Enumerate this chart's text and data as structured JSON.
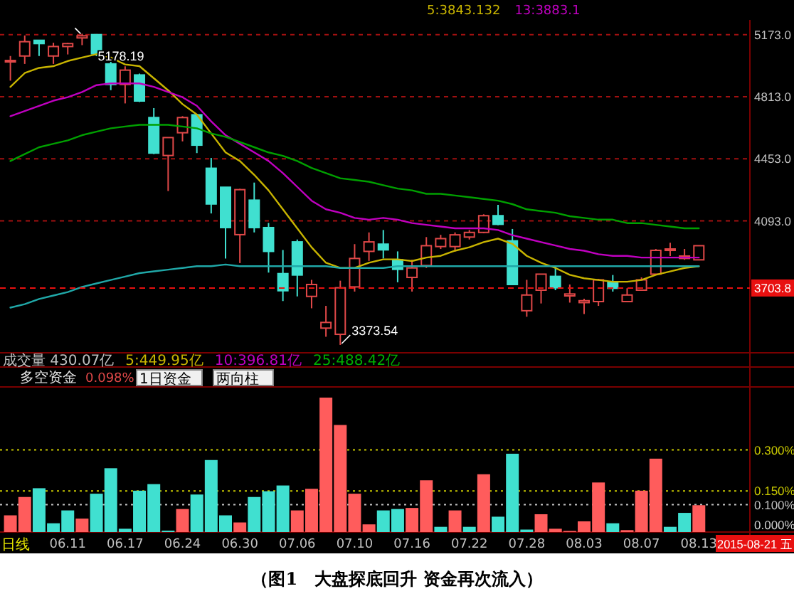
{
  "chart_data": [
    {
      "type": "candlestick",
      "title": "（图1　大盘探底回升 资金再次流入）",
      "categories": [
        null,
        null,
        null,
        null,
        "06.11",
        null,
        null,
        null,
        "06.17",
        null,
        null,
        null,
        "06.24",
        null,
        null,
        null,
        "06.30",
        null,
        null,
        null,
        "07.06",
        null,
        null,
        null,
        "07.10",
        null,
        null,
        null,
        "07.16",
        null,
        null,
        null,
        "07.22",
        null,
        null,
        null,
        "07.28",
        null,
        null,
        null,
        "08.03",
        null,
        null,
        null,
        "08.07",
        null,
        null,
        null,
        "08.13"
      ],
      "ohlc": [
        [
          5015,
          5049,
          4906,
          5023
        ],
        [
          5049,
          5168,
          5003,
          5132
        ],
        [
          5140,
          5140,
          5049,
          5121
        ],
        [
          5049,
          5126,
          5003,
          5104
        ],
        [
          5104,
          5126,
          5058,
          5121
        ],
        [
          5154,
          5178.19,
          5112,
          5166
        ],
        [
          5173,
          5176,
          5048,
          5062
        ],
        [
          5003,
          5030,
          4851,
          4884
        ],
        [
          4884,
          4989,
          4774,
          4967
        ],
        [
          4939,
          4947,
          4782,
          4788
        ],
        [
          4692,
          4747,
          4480,
          4486
        ],
        [
          4472,
          4576,
          4266,
          4576
        ],
        [
          4604,
          4700,
          4554,
          4692
        ],
        [
          4708,
          4714,
          4486,
          4532
        ],
        [
          4398,
          4458,
          4136,
          4191
        ],
        [
          4288,
          4288,
          3875,
          4054
        ],
        [
          4013,
          4279,
          3848,
          4274
        ],
        [
          4213,
          4315,
          4026,
          4054
        ],
        [
          4054,
          4081,
          3793,
          3916
        ],
        [
          3787,
          3924,
          3628,
          3688
        ],
        [
          3971,
          3985,
          3655,
          3779
        ],
        [
          3655,
          3751,
          3586,
          3724
        ],
        [
          3471,
          3600,
          3421,
          3504
        ],
        [
          3435,
          3746,
          3373.54,
          3705
        ],
        [
          3710,
          3958,
          3683,
          3875
        ],
        [
          3916,
          4026,
          3861,
          3971
        ],
        [
          3958,
          4040,
          3875,
          3925
        ],
        [
          3867,
          3916,
          3737,
          3812
        ],
        [
          3765,
          3867,
          3683,
          3820
        ],
        [
          3834,
          3999,
          3820,
          3949
        ],
        [
          3944,
          4012,
          3930,
          3990
        ],
        [
          3944,
          4026,
          3916,
          4012
        ],
        [
          3999,
          4040,
          3985,
          4026
        ],
        [
          4026,
          4131,
          4021,
          4123
        ],
        [
          4123,
          4186,
          4068,
          4073
        ],
        [
          3977,
          4046,
          3724,
          3724
        ],
        [
          3572,
          3751,
          3537,
          3663
        ],
        [
          3691,
          3784,
          3614,
          3784
        ],
        [
          3771,
          3834,
          3691,
          3705
        ],
        [
          3658,
          3724,
          3619,
          3669
        ],
        [
          3619,
          3641,
          3553,
          3630
        ],
        [
          3625,
          3757,
          3600,
          3751
        ],
        [
          3737,
          3779,
          3683,
          3702
        ],
        [
          3625,
          3702,
          3625,
          3663
        ],
        [
          3691,
          3765,
          3691,
          3751
        ],
        [
          3784,
          3930,
          3784,
          3922
        ],
        [
          3925,
          3966,
          3889,
          3930
        ],
        [
          3875,
          3930,
          3867,
          3889
        ],
        [
          3867,
          3949,
          3867,
          3949
        ]
      ],
      "series": [
        {
          "type": "line",
          "name": "5:3843.132",
          "color": "#c8b400",
          "values": [
            4870,
            4950,
            4980,
            4990,
            5020,
            5040,
            5060,
            5040,
            5000,
            4990,
            4920,
            4850,
            4770,
            4710,
            4600,
            4490,
            4440,
            4360,
            4270,
            4160,
            4050,
            3940,
            3850,
            3820,
            3820,
            3850,
            3870,
            3870,
            3860,
            3880,
            3890,
            3920,
            3940,
            3970,
            3990,
            3960,
            3890,
            3850,
            3820,
            3780,
            3760,
            3750,
            3740,
            3740,
            3750,
            3780,
            3800,
            3820,
            3830
          ]
        },
        {
          "type": "line",
          "name": "13:3883.1",
          "color": "#c000c0",
          "values": [
            4700,
            4730,
            4760,
            4790,
            4810,
            4840,
            4880,
            4890,
            4890,
            4890,
            4870,
            4840,
            4810,
            4760,
            4670,
            4590,
            4540,
            4490,
            4440,
            4370,
            4290,
            4210,
            4160,
            4140,
            4110,
            4100,
            4110,
            4100,
            4080,
            4070,
            4060,
            4050,
            4050,
            4050,
            4040,
            4010,
            3990,
            3970,
            3950,
            3930,
            3920,
            3900,
            3890,
            3890,
            3880,
            3880,
            3880,
            3880,
            3880
          ]
        },
        {
          "type": "line",
          "color": "#00a000",
          "values": [
            4440,
            4480,
            4520,
            4540,
            4560,
            4590,
            4610,
            4630,
            4640,
            4650,
            4650,
            4650,
            4640,
            4630,
            4600,
            4580,
            4550,
            4520,
            4490,
            4470,
            4440,
            4400,
            4370,
            4340,
            4330,
            4320,
            4300,
            4280,
            4270,
            4250,
            4250,
            4240,
            4230,
            4220,
            4210,
            4190,
            4160,
            4150,
            4140,
            4120,
            4110,
            4100,
            4100,
            4080,
            4080,
            4070,
            4060,
            4050,
            4050
          ]
        },
        {
          "type": "line",
          "color": "#20a8a8",
          "values": [
            3590,
            3610,
            3640,
            3660,
            3680,
            3710,
            3730,
            3750,
            3770,
            3790,
            3800,
            3810,
            3820,
            3830,
            3830,
            3840,
            3830,
            3830,
            3830,
            3830,
            3830,
            3830,
            3830,
            3820,
            3820,
            3820,
            3820,
            3830,
            3830,
            3830,
            3830,
            3830,
            3830,
            3830,
            3830,
            3830,
            3830,
            3830,
            3830,
            3830,
            3830,
            3830,
            3830,
            3830,
            3830,
            3830,
            3830,
            3830,
            3830
          ]
        }
      ],
      "ylim": [
        3328,
        5250
      ],
      "yticks": [
        {
          "value": 5173,
          "label": "5173.0"
        },
        {
          "value": 4813,
          "label": "4813.0"
        },
        {
          "value": 4453,
          "label": "4453.0"
        },
        {
          "value": 4093,
          "label": "4093.0"
        }
      ],
      "grid": "y",
      "legend": "top",
      "tick_labels": "y",
      "ref_lines": [
        {
          "axis": "y",
          "value": 3703.8,
          "label": "3703.8",
          "color": "#e81010",
          "line_style": "dashed"
        }
      ],
      "annotations": [
        "成交量 430.07亿",
        "5:449.95亿",
        "10:396.81亿",
        "25:488.42亿",
        "5178.19",
        "3373.54"
      ]
    },
    {
      "type": "bar",
      "title": "多空资金",
      "categories": [
        null,
        null,
        null,
        null,
        "06.11",
        null,
        null,
        null,
        "06.17",
        null,
        null,
        null,
        "06.24",
        null,
        null,
        null,
        "06.30",
        null,
        null,
        null,
        "07.06",
        null,
        null,
        null,
        "07.10",
        null,
        null,
        null,
        "07.16",
        null,
        null,
        null,
        "07.22",
        null,
        null,
        null,
        "07.28",
        null,
        null,
        null,
        "08.03",
        null,
        null,
        null,
        "08.07",
        null,
        null,
        null,
        "08.13"
      ],
      "values": [
        0.061,
        0.128,
        0.16,
        0.032,
        0.079,
        0.049,
        0.14,
        0.233,
        0.012,
        0.151,
        0.175,
        0.005,
        0.084,
        0.137,
        0.263,
        0.061,
        0.035,
        0.128,
        0.149,
        0.17,
        0.079,
        0.158,
        0.491,
        0.391,
        0.14,
        0.028,
        0.079,
        0.084,
        0.088,
        0.189,
        0.019,
        0.079,
        0.019,
        0.211,
        0.056,
        0.286,
        0.009,
        0.065,
        0.012,
        0.004,
        0.039,
        0.181,
        0.032,
        0.007,
        0.151,
        0.268,
        0.019,
        0.07,
        0.098
      ],
      "colors": [
        "#ff5c5c",
        "#ff5c5c",
        "#40e0d0",
        "#40e0d0",
        "#40e0d0",
        "#ff5c5c",
        "#40e0d0",
        "#40e0d0",
        "#40e0d0",
        "#40e0d0",
        "#40e0d0",
        "#40e0d0",
        "#ff5c5c",
        "#40e0d0",
        "#40e0d0",
        "#40e0d0",
        "#ff5c5c",
        "#40e0d0",
        "#40e0d0",
        "#40e0d0",
        "#ff5c5c",
        "#ff5c5c",
        "#ff5c5c",
        "#ff5c5c",
        "#ff5c5c",
        "#ff5c5c",
        "#40e0d0",
        "#40e0d0",
        "#ff5c5c",
        "#ff5c5c",
        "#40e0d0",
        "#ff5c5c",
        "#40e0d0",
        "#ff5c5c",
        "#40e0d0",
        "#40e0d0",
        "#40e0d0",
        "#ff5c5c",
        "#ff5c5c",
        "#ff5c5c",
        "#ff5c5c",
        "#ff5c5c",
        "#40e0d0",
        "#ff5c5c",
        "#ff5c5c",
        "#ff5c5c",
        "#40e0d0",
        "#40e0d0",
        "#ff5c5c"
      ],
      "ylim": [
        0,
        0.53
      ],
      "yticks": [
        {
          "value": 0,
          "label": "0.000%"
        },
        {
          "value": 0.1,
          "label": "0.100%"
        },
        {
          "value": 0.15,
          "label": "0.150%"
        },
        {
          "value": 0.3,
          "label": "0.300%"
        }
      ],
      "ref_lines": [
        {
          "axis": "y",
          "value": 0.3,
          "color": "#c8c800",
          "line_style": "dotted"
        },
        {
          "axis": "y",
          "value": 0.15,
          "color": "#c8c800",
          "line_style": "dotted"
        },
        {
          "axis": "y",
          "value": 0.1,
          "color": "#c0c0c0",
          "line_style": "dotted"
        }
      ],
      "annotations": [
        "0.098%",
        "1日资金",
        "两向柱",
        "日线",
        "2015-08-21 五"
      ]
    }
  ]
}
